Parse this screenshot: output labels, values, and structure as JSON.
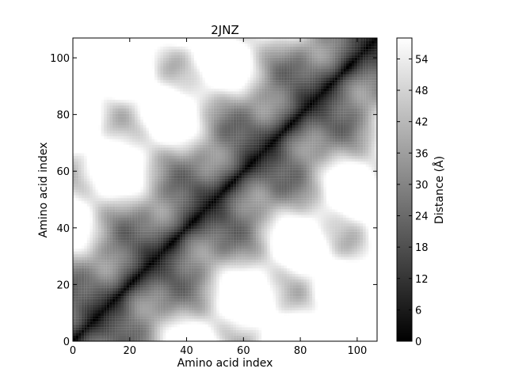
{
  "chart_data": {
    "type": "heatmap",
    "title": "2JNZ",
    "xlabel": "Amino acid index",
    "ylabel": "Amino acid index",
    "xlim": [
      0,
      107
    ],
    "ylim": [
      0,
      107
    ],
    "n_residues": 108,
    "x_ticks": [
      0,
      20,
      40,
      60,
      80,
      100
    ],
    "y_ticks": [
      0,
      20,
      40,
      60,
      80,
      100
    ],
    "colorbar": {
      "label": "Distance (Å)",
      "range": [
        0,
        58
      ],
      "ticks": [
        0,
        6,
        12,
        18,
        24,
        30,
        36,
        42,
        48,
        54
      ],
      "colormap": "gray"
    }
  }
}
